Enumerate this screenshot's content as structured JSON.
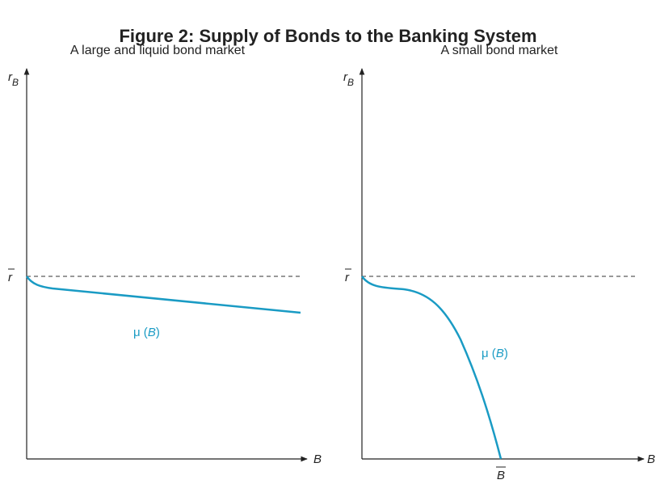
{
  "title": "Figure 2: Supply of Bonds to the Banking System",
  "panels": [
    {
      "subtitle": "A large and liquid bond market",
      "y_label": {
        "main": "r",
        "sub": "B"
      },
      "x_label": "B",
      "reference_label": "r",
      "curve_label": [
        "μ (",
        "B",
        ")"
      ]
    },
    {
      "subtitle": "A small bond market",
      "y_label": {
        "main": "r",
        "sub": "B"
      },
      "x_label": "B",
      "reference_label": "r",
      "curve_label": [
        "μ (",
        "B",
        ")"
      ],
      "limit_label": "B"
    }
  ]
}
